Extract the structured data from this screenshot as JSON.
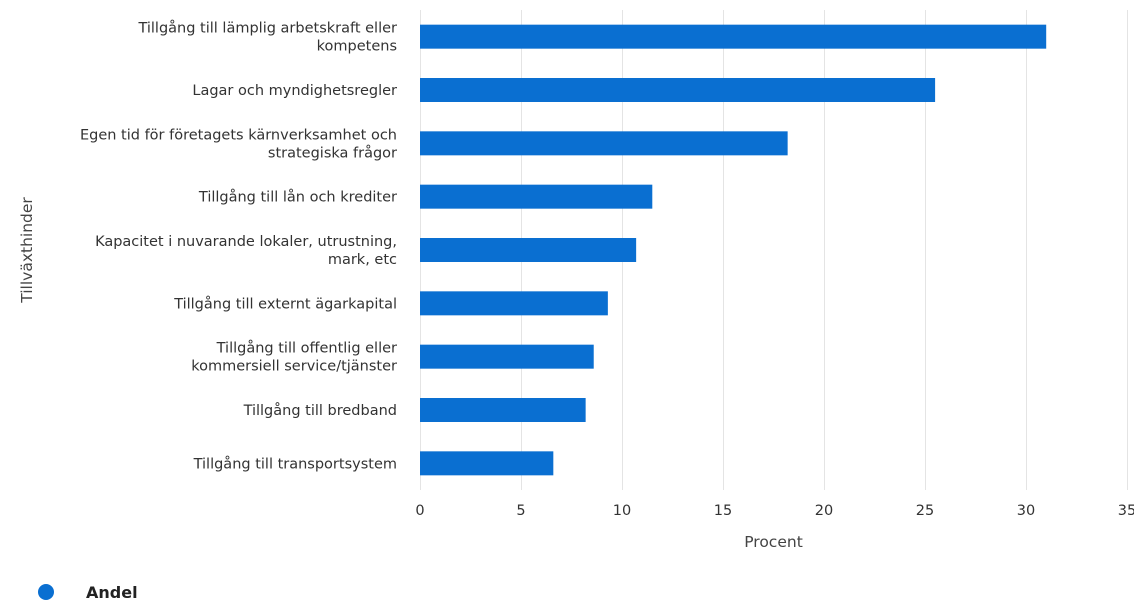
{
  "chart_data": {
    "type": "bar",
    "orientation": "horizontal",
    "categories": [
      [
        "Tillgång till lämplig arbetskraft eller",
        "kompetens"
      ],
      [
        "Lagar och myndighetsregler"
      ],
      [
        "Egen tid för företagets kärnverksamhet och",
        "strategiska frågor"
      ],
      [
        "Tillgång till lån och krediter"
      ],
      [
        "Kapacitet i nuvarande lokaler, utrustning,",
        "mark, etc"
      ],
      [
        "Tillgång till externt ägarkapital"
      ],
      [
        "Tillgång till offentlig eller",
        "kommersiell service/tjänster"
      ],
      [
        "Tillgång till bredband"
      ],
      [
        "Tillgång till transportsystem"
      ]
    ],
    "series": [
      {
        "name": "Andel",
        "values": [
          31.0,
          25.5,
          18.2,
          11.5,
          10.7,
          9.3,
          8.6,
          8.2,
          6.6
        ]
      }
    ],
    "xlabel": "Procent",
    "ylabel": "Tillväxthinder",
    "xlim": [
      0,
      35
    ],
    "xticks": [
      0,
      5,
      10,
      15,
      20,
      25,
      30,
      35
    ],
    "grid": "vertical",
    "legend_position": "bottom-left",
    "bar_color": "#0a6fd1"
  }
}
